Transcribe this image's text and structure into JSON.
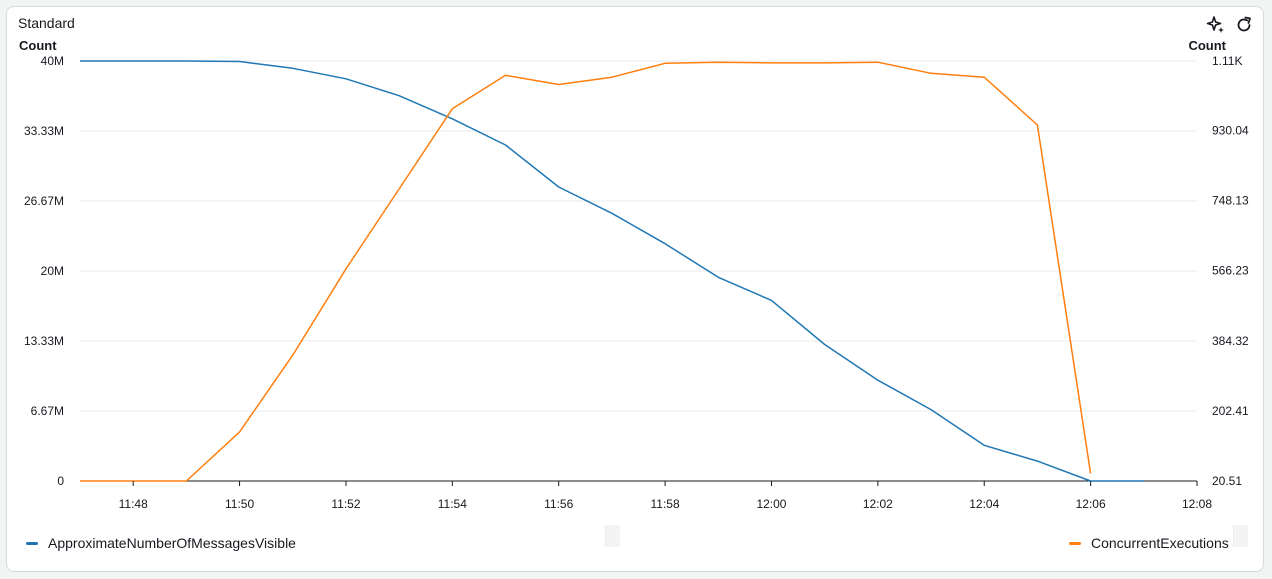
{
  "widget": {
    "title": "Standard"
  },
  "icons": {
    "sparkle": "sparkle-icon",
    "refresh": "refresh-icon"
  },
  "colors": {
    "series1": "#1f77b4",
    "series2": "#ff7f0e",
    "grid": "#e9ebed",
    "axis": "#16191f"
  },
  "chart_data": {
    "type": "line",
    "title": "Standard",
    "y_left": {
      "label": "Count",
      "range": [
        0,
        40000000
      ],
      "ticks": [
        0,
        6670000,
        13330000,
        20000000,
        26670000,
        33330000,
        40000000
      ],
      "tick_labels": [
        "0",
        "6.67M",
        "13.33M",
        "20M",
        "26.67M",
        "33.33M",
        "40M"
      ]
    },
    "y_right": {
      "label": "Count",
      "range": [
        20.51,
        1110
      ],
      "ticks": [
        20.51,
        202.41,
        384.32,
        566.23,
        748.13,
        930.04,
        1110
      ],
      "tick_labels": [
        "20.51",
        "202.41",
        "384.32",
        "566.23",
        "748.13",
        "930.04",
        "1.11K"
      ]
    },
    "x": {
      "range": [
        "11:47",
        "12:08"
      ],
      "ticks": [
        "11:48",
        "11:50",
        "11:52",
        "11:54",
        "11:56",
        "11:58",
        "12:00",
        "12:02",
        "12:04",
        "12:06",
        "12:08"
      ]
    },
    "grid": true,
    "legend": "bottom",
    "series": [
      {
        "name": "ApproximateNumberOfMessagesVisible",
        "axis": "left",
        "points": [
          [
            "11:47",
            40000000
          ],
          [
            "11:48",
            40000000
          ],
          [
            "11:49",
            40000000
          ],
          [
            "11:50",
            39950000
          ],
          [
            "11:51",
            39300000
          ],
          [
            "11:52",
            38300000
          ],
          [
            "11:53",
            36700000
          ],
          [
            "11:54",
            34500000
          ],
          [
            "11:55",
            32000000
          ],
          [
            "11:56",
            28000000
          ],
          [
            "11:57",
            25500000
          ],
          [
            "11:58",
            22600000
          ],
          [
            "11:59",
            19400000
          ],
          [
            "12:00",
            17200000
          ],
          [
            "12:01",
            13000000
          ],
          [
            "12:02",
            9600000
          ],
          [
            "12:03",
            6800000
          ],
          [
            "12:04",
            3400000
          ],
          [
            "12:05",
            1900000
          ],
          [
            "12:06",
            0
          ],
          [
            "12:07",
            0
          ]
        ]
      },
      {
        "name": "ConcurrentExecutions",
        "axis": "right",
        "points": [
          [
            "11:47",
            20.51
          ],
          [
            "11:48",
            20.51
          ],
          [
            "11:49",
            20.51
          ],
          [
            "11:50",
            148
          ],
          [
            "11:51",
            347
          ],
          [
            "11:52",
            571
          ],
          [
            "11:53",
            778
          ],
          [
            "11:54",
            986
          ],
          [
            "11:55",
            1073
          ],
          [
            "11:56",
            1049
          ],
          [
            "11:57",
            1068
          ],
          [
            "11:58",
            1104
          ],
          [
            "11:59",
            1107
          ],
          [
            "12:00",
            1105
          ],
          [
            "12:01",
            1105
          ],
          [
            "12:02",
            1107
          ],
          [
            "12:03",
            1078
          ],
          [
            "12:04",
            1068
          ],
          [
            "12:05",
            944
          ],
          [
            "12:06",
            40
          ]
        ]
      }
    ]
  }
}
